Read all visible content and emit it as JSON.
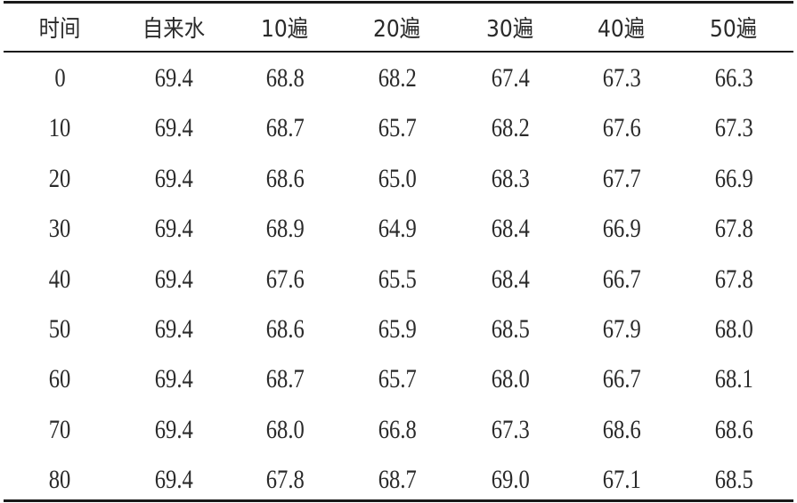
{
  "table": {
    "headers": [
      "时间",
      "自来水",
      "10遍",
      "20遍",
      "30遍",
      "40遍",
      "50遍"
    ],
    "rows": [
      [
        "0",
        "69.4",
        "68.8",
        "68.2",
        "67.4",
        "67.3",
        "66.3"
      ],
      [
        "10",
        "69.4",
        "68.7",
        "65.7",
        "68.2",
        "67.6",
        "67.3"
      ],
      [
        "20",
        "69.4",
        "68.6",
        "65.0",
        "68.3",
        "67.7",
        "66.9"
      ],
      [
        "30",
        "69.4",
        "68.9",
        "64.9",
        "68.4",
        "66.9",
        "67.8"
      ],
      [
        "40",
        "69.4",
        "67.6",
        "65.5",
        "68.4",
        "66.7",
        "67.8"
      ],
      [
        "50",
        "69.4",
        "68.6",
        "65.9",
        "68.5",
        "67.9",
        "68.0"
      ],
      [
        "60",
        "69.4",
        "68.7",
        "65.7",
        "68.0",
        "66.7",
        "68.1"
      ],
      [
        "70",
        "69.4",
        "68.0",
        "66.8",
        "67.3",
        "68.6",
        "68.6"
      ],
      [
        "80",
        "69.4",
        "67.8",
        "68.7",
        "69.0",
        "67.1",
        "68.5"
      ]
    ]
  }
}
